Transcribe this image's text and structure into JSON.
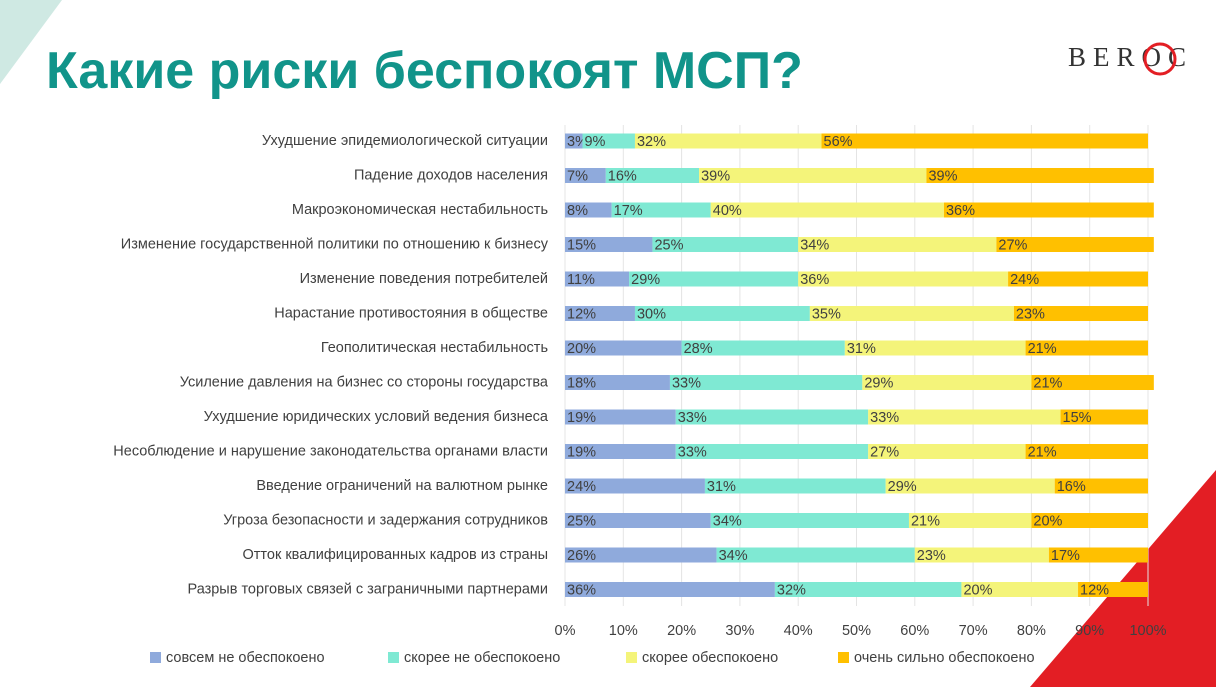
{
  "logo": "BEROC",
  "chart_data": {
    "type": "stacked-bar-horizontal",
    "title": "Какие риски беспокоят МСП?",
    "categories": [
      "Ухудшение эпидемиологической ситуации",
      "Падение доходов населения",
      "Макроэкономическая нестабильность",
      "Изменение государственной политики по отношению к бизнесу",
      "Изменение поведения потребителей",
      "Нарастание противостояния в обществе",
      "Геополитическая нестабильность",
      "Усиление давления на бизнес со стороны государства",
      "Ухудшение юридических условий ведения бизнеса",
      "Несоблюдение и нарушение законодательства органами власти",
      "Введение ограничений на валютном рынке",
      "Угроза безопасности и задержания сотрудников",
      "Отток квалифицированных кадров из страны",
      "Разрыв торговых связей с заграничными партнерами"
    ],
    "series": [
      {
        "name": "совсем не обеспокоено",
        "color": "#8faadc",
        "values": [
          3,
          7,
          8,
          15,
          11,
          12,
          20,
          18,
          19,
          19,
          24,
          25,
          26,
          36
        ],
        "value_labels": [
          "3%",
          "7%",
          "8%",
          "15%",
          "11%",
          "12%",
          "20%",
          "18%",
          "19%",
          "19%",
          "24%",
          "25%",
          "26%",
          "36%"
        ]
      },
      {
        "name": "скорее не обеспокоено",
        "color": "#7fe9d3",
        "values": [
          9,
          16,
          17,
          25,
          29,
          30,
          28,
          33,
          33,
          33,
          31,
          34,
          34,
          32
        ],
        "value_labels": [
          "9%",
          "16%",
          "17%",
          "25%",
          "29%",
          "30%",
          "28%",
          "33%",
          "33%",
          "33%",
          "31%",
          "34%",
          "34%",
          "32%"
        ]
      },
      {
        "name": "скорее обеспокоено",
        "color": "#f4f47a",
        "values": [
          32,
          39,
          40,
          34,
          36,
          35,
          31,
          29,
          33,
          27,
          29,
          21,
          23,
          20
        ],
        "value_labels": [
          "32%",
          "39%",
          "40%",
          "34%",
          "36%",
          "35%",
          "31%",
          "29%",
          "33%",
          "27%",
          "29%",
          "21%",
          "23%",
          "20%"
        ]
      },
      {
        "name": "очень сильно обеспокоено",
        "color": "#ffc000",
        "values": [
          56,
          39,
          36,
          27,
          24,
          23,
          21,
          21,
          15,
          21,
          16,
          20,
          17,
          12
        ],
        "value_labels": [
          "56%",
          "39%",
          "36%",
          "27%",
          "24%",
          "23%",
          "21%",
          "21%",
          "15%",
          "21%",
          "16%",
          "20%",
          "17%",
          "12%"
        ]
      }
    ],
    "xlim": [
      0,
      100
    ],
    "xticks": [
      {
        "value": 0,
        "label": "0%"
      },
      {
        "value": 10,
        "label": "10%"
      },
      {
        "value": 20,
        "label": "20%"
      },
      {
        "value": 30,
        "label": "30%"
      },
      {
        "value": 40,
        "label": "40%"
      },
      {
        "value": 50,
        "label": "50%"
      },
      {
        "value": 60,
        "label": "60%"
      },
      {
        "value": 70,
        "label": "70%"
      },
      {
        "value": 80,
        "label": "80%"
      },
      {
        "value": 90,
        "label": "90%"
      },
      {
        "value": 100,
        "label": "100%"
      }
    ],
    "legend": "bottom"
  }
}
